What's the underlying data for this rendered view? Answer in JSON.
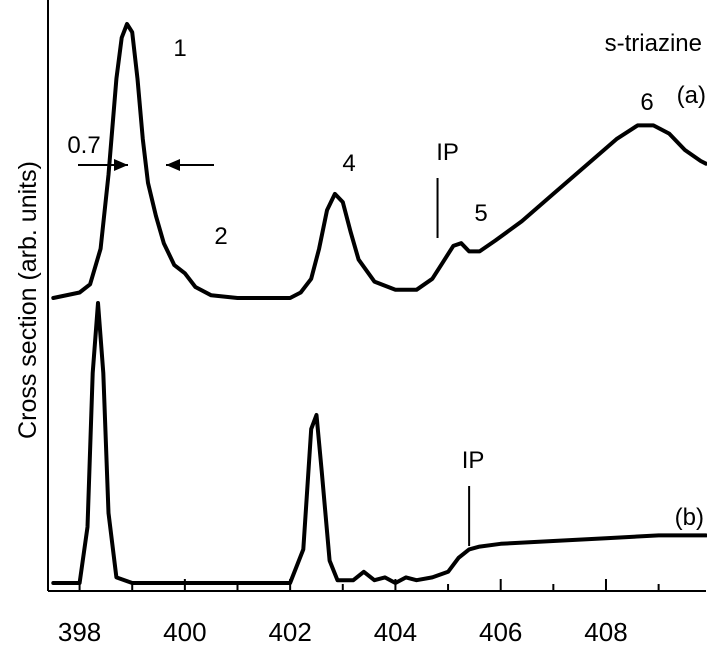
{
  "chart_data": {
    "type": "line",
    "title": "",
    "xlabel": "",
    "ylabel": "Cross section (arb. units)",
    "xlim": [
      397.4,
      409.9
    ],
    "x_ticks": [
      398,
      400,
      402,
      404,
      406,
      408
    ],
    "x_tick_labels": [
      "398",
      "400",
      "402",
      "404",
      "406",
      "408"
    ],
    "grid": false,
    "legend": "none",
    "series": [
      {
        "label": "(a)",
        "x": [
          397.5,
          398.0,
          398.2,
          398.4,
          398.55,
          398.7,
          398.8,
          398.9,
          399.0,
          399.1,
          399.2,
          399.3,
          399.45,
          399.6,
          399.8,
          400.0,
          400.2,
          400.5,
          401.0,
          401.5,
          402.0,
          402.2,
          402.4,
          402.55,
          402.7,
          402.85,
          403.0,
          403.15,
          403.3,
          403.6,
          404.0,
          404.4,
          404.7,
          404.9,
          405.1,
          405.25,
          405.4,
          405.6,
          405.9,
          406.4,
          407.0,
          407.6,
          408.2,
          408.6,
          408.9,
          409.2,
          409.5,
          409.8,
          409.9
        ],
        "y": [
          0.0,
          0.02,
          0.05,
          0.18,
          0.45,
          0.8,
          0.95,
          1.0,
          0.97,
          0.8,
          0.58,
          0.42,
          0.3,
          0.2,
          0.12,
          0.09,
          0.04,
          0.01,
          0.0,
          0.0,
          0.0,
          0.02,
          0.07,
          0.18,
          0.32,
          0.38,
          0.35,
          0.24,
          0.14,
          0.06,
          0.03,
          0.03,
          0.07,
          0.13,
          0.19,
          0.2,
          0.17,
          0.17,
          0.21,
          0.28,
          0.38,
          0.48,
          0.58,
          0.63,
          0.63,
          0.6,
          0.54,
          0.5,
          0.49
        ],
        "annotations": [
          {
            "text": "1",
            "x": 399.2,
            "y": 1.0
          },
          {
            "text": "2",
            "x": 400.2,
            "y": 0.22
          },
          {
            "text": "4",
            "x": 402.85,
            "y": 0.44
          },
          {
            "text": "IP",
            "x": 404.8,
            "y": 0.6
          },
          {
            "text": "5",
            "x": 405.2,
            "y": 0.3
          },
          {
            "text": "6",
            "x": 408.6,
            "y": 0.75
          },
          {
            "text": "0.7",
            "x": 398.2,
            "y": 0.56
          },
          {
            "text": "s-triazine",
            "x": 409.5,
            "y": 1.03
          },
          {
            "text": "(a)",
            "x": 409.7,
            "y": 0.77
          }
        ]
      },
      {
        "label": "(b)",
        "x": [
          397.5,
          398.0,
          398.15,
          398.25,
          398.35,
          398.45,
          398.55,
          398.7,
          399.0,
          400.0,
          401.0,
          402.0,
          402.25,
          402.4,
          402.5,
          402.6,
          402.75,
          402.9,
          403.2,
          403.4,
          403.6,
          403.8,
          404.0,
          404.2,
          404.4,
          404.7,
          405.0,
          405.2,
          405.4,
          405.6,
          406.0,
          407.0,
          408.0,
          409.0,
          409.9
        ],
        "y": [
          0.0,
          0.0,
          0.2,
          0.75,
          1.0,
          0.75,
          0.25,
          0.02,
          0.0,
          0.0,
          0.0,
          0.0,
          0.12,
          0.55,
          0.6,
          0.4,
          0.08,
          0.01,
          0.01,
          0.04,
          0.01,
          0.02,
          0.0,
          0.02,
          0.01,
          0.02,
          0.04,
          0.09,
          0.12,
          0.13,
          0.14,
          0.15,
          0.16,
          0.17,
          0.17
        ],
        "annotations": [
          {
            "text": "IP",
            "x": 405.4,
            "y": 0.45
          },
          {
            "text": "(b)",
            "x": 409.6,
            "y": 0.22
          }
        ]
      }
    ]
  }
}
